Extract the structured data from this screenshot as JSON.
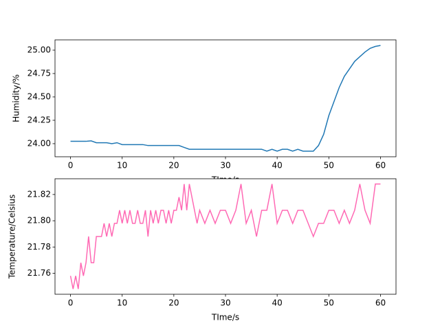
{
  "chart_data": [
    {
      "type": "line",
      "ylabel": "Humidity/%",
      "xlabel": "TIme/s",
      "color": "#1f77b4",
      "xlim": [
        -3,
        63
      ],
      "ylim": [
        23.86,
        25.11
      ],
      "xticks": [
        0,
        10,
        20,
        30,
        40,
        50,
        60
      ],
      "yticks": [
        {
          "value": 24,
          "label": "24.00"
        },
        24.25,
        {
          "value": 24.5,
          "label": "24.50"
        },
        24.75,
        {
          "value": 25,
          "label": "25.00"
        }
      ],
      "x": [
        0,
        1,
        2,
        3,
        4,
        5,
        6,
        7,
        8,
        9,
        10,
        11,
        12,
        13,
        14,
        15,
        16,
        17,
        18,
        19,
        20,
        21,
        22,
        23,
        24,
        25,
        26,
        27,
        28,
        29,
        30,
        31,
        32,
        33,
        34,
        35,
        36,
        37,
        38,
        39,
        40,
        41,
        42,
        43,
        44,
        45,
        46,
        47,
        48,
        49,
        50,
        51,
        52,
        53,
        54,
        55,
        56,
        57,
        58,
        59,
        60
      ],
      "values": [
        24.025,
        24.025,
        24.025,
        24.025,
        24.03,
        24.01,
        24.01,
        24.01,
        24.0,
        24.01,
        23.99,
        23.99,
        23.99,
        23.99,
        23.99,
        23.98,
        23.98,
        23.98,
        23.98,
        23.98,
        23.98,
        23.98,
        23.96,
        23.94,
        23.94,
        23.94,
        23.94,
        23.94,
        23.94,
        23.94,
        23.94,
        23.94,
        23.94,
        23.94,
        23.94,
        23.94,
        23.94,
        23.94,
        23.92,
        23.94,
        23.92,
        23.94,
        23.94,
        23.92,
        23.94,
        23.92,
        23.92,
        23.92,
        23.98,
        24.1,
        24.3,
        24.45,
        24.6,
        24.72,
        24.8,
        24.88,
        24.93,
        24.98,
        25.02,
        25.04,
        25.05
      ]
    },
    {
      "type": "line",
      "ylabel": "Temperature/Celsius",
      "xlabel": "TIme/s",
      "color": "#ff69b4",
      "xlim": [
        -3,
        63
      ],
      "ylim": [
        21.744,
        21.832
      ],
      "xticks": [
        0,
        10,
        20,
        30,
        40,
        50,
        60
      ],
      "yticks": [
        21.76,
        21.78,
        {
          "value": 21.8,
          "label": "21.80"
        },
        21.82
      ],
      "x": [
        0,
        0.5,
        1,
        1.5,
        2,
        2.5,
        3,
        3.5,
        4,
        4.5,
        5,
        5.5,
        6,
        6.5,
        7,
        7.5,
        8,
        8.5,
        9,
        9.5,
        10,
        10.5,
        11,
        11.5,
        12,
        12.5,
        13,
        13.5,
        14,
        14.5,
        15,
        15.5,
        16,
        16.5,
        17,
        17.5,
        18,
        18.5,
        19,
        19.5,
        20,
        20.5,
        21,
        21.5,
        22,
        22.5,
        23,
        23.5,
        24,
        24.5,
        25,
        26,
        27,
        28,
        29,
        30,
        31,
        32,
        33,
        34,
        35,
        36,
        37,
        38,
        39,
        40,
        41,
        42,
        43,
        44,
        45,
        46,
        47,
        48,
        49,
        50,
        51,
        52,
        53,
        54,
        55,
        56,
        57,
        58,
        59,
        60
      ],
      "values": [
        21.758,
        21.748,
        21.758,
        21.748,
        21.768,
        21.758,
        21.768,
        21.788,
        21.768,
        21.768,
        21.788,
        21.788,
        21.788,
        21.798,
        21.788,
        21.798,
        21.788,
        21.798,
        21.798,
        21.808,
        21.798,
        21.808,
        21.798,
        21.808,
        21.798,
        21.798,
        21.808,
        21.798,
        21.798,
        21.808,
        21.788,
        21.808,
        21.798,
        21.808,
        21.798,
        21.808,
        21.808,
        21.798,
        21.808,
        21.798,
        21.808,
        21.808,
        21.818,
        21.808,
        21.828,
        21.808,
        21.828,
        21.818,
        21.808,
        21.798,
        21.808,
        21.798,
        21.808,
        21.798,
        21.808,
        21.808,
        21.798,
        21.808,
        21.828,
        21.798,
        21.808,
        21.788,
        21.808,
        21.808,
        21.828,
        21.798,
        21.808,
        21.808,
        21.798,
        21.808,
        21.808,
        21.798,
        21.788,
        21.798,
        21.798,
        21.808,
        21.808,
        21.798,
        21.808,
        21.798,
        21.808,
        21.828,
        21.808,
        21.798,
        21.828,
        21.828
      ]
    }
  ]
}
